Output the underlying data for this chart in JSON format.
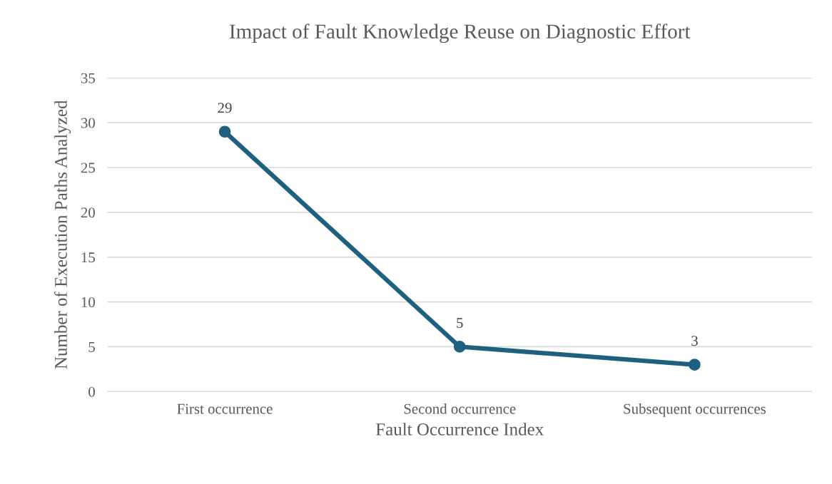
{
  "chart_data": {
    "type": "line",
    "title": "Impact of Fault Knowledge Reuse on Diagnostic Effort",
    "xlabel": "Fault Occurrence Index",
    "ylabel": "Number of Execution Paths Analyzed",
    "categories": [
      "First occurrence",
      "Second occurrence",
      "Subsequent occurrences"
    ],
    "series": [
      {
        "color": "#1f5f7f",
        "values": [
          29,
          5,
          3
        ]
      }
    ],
    "ylim": [
      0,
      35
    ],
    "yticks": [
      0,
      5,
      10,
      15,
      20,
      25,
      30,
      35
    ],
    "grid": "y",
    "marker": "circle",
    "line_style": "solid",
    "data_labels": true
  }
}
